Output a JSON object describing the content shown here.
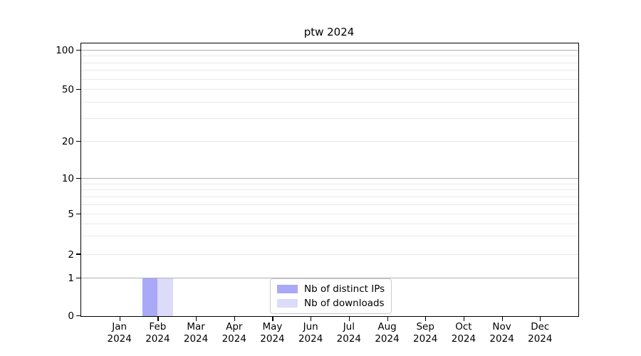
{
  "chart_data": {
    "type": "bar",
    "title": "ptw 2024",
    "categories": [
      "Jan",
      "Feb",
      "Mar",
      "Apr",
      "May",
      "Jun",
      "Jul",
      "Aug",
      "Sep",
      "Oct",
      "Nov",
      "Dec"
    ],
    "category_year": "2024",
    "series": [
      {
        "name": "Nb of distinct IPs",
        "color": "#a9a9f7",
        "values": [
          0,
          1,
          0,
          0,
          0,
          0,
          0,
          0,
          0,
          0,
          0,
          0
        ]
      },
      {
        "name": "Nb of downloads",
        "color": "#dcdcf9",
        "values": [
          0,
          1,
          0,
          0,
          0,
          0,
          0,
          0,
          0,
          0,
          0,
          0
        ]
      }
    ],
    "yscale": "symlog",
    "ylim": [
      0,
      115
    ],
    "y_tick_labels": [
      0,
      1,
      2,
      5,
      10,
      20,
      50,
      100
    ],
    "y_major_gridlines": [
      1,
      10,
      100
    ],
    "y_minor_gridlines": [
      2,
      3,
      4,
      5,
      6,
      7,
      8,
      9,
      20,
      30,
      40,
      50,
      60,
      70,
      80,
      90
    ],
    "grid": "horizontal",
    "legend_position": "lower center inside",
    "colors": {
      "major_grid": "#b0b0b0",
      "minor_grid": "#e9e9e9",
      "axis": "#000000",
      "background": "#ffffff"
    }
  }
}
